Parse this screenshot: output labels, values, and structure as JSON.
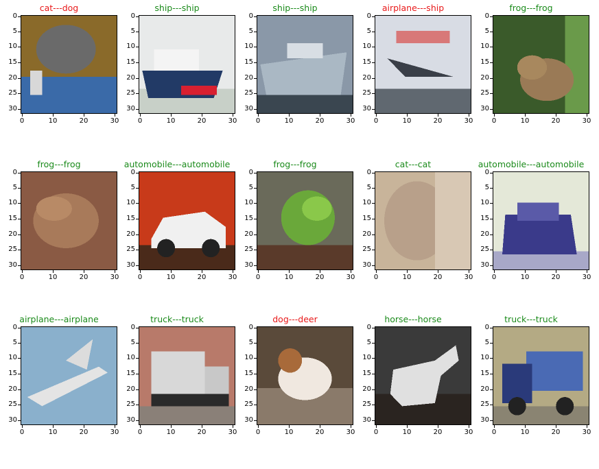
{
  "colors": {
    "correct": "#1a8a1a",
    "wrong": "#e8191a"
  },
  "axis": {
    "yticks": [
      "0",
      "5",
      "10",
      "15",
      "20",
      "25",
      "30"
    ],
    "xticks": [
      "0",
      "10",
      "20",
      "30"
    ]
  },
  "panels": [
    {
      "title": "cat---dog",
      "correct": false,
      "icon": "cat-image"
    },
    {
      "title": "ship---ship",
      "correct": true,
      "icon": "ship-image"
    },
    {
      "title": "ship---ship",
      "correct": true,
      "icon": "ship-image"
    },
    {
      "title": "airplane---ship",
      "correct": false,
      "icon": "airplane-image"
    },
    {
      "title": "frog---frog",
      "correct": true,
      "icon": "frog-image"
    },
    {
      "title": "frog---frog",
      "correct": true,
      "icon": "frog-image"
    },
    {
      "title": "automobile---automobile",
      "correct": true,
      "icon": "car-image"
    },
    {
      "title": "frog---frog",
      "correct": true,
      "icon": "frog-image"
    },
    {
      "title": "cat---cat",
      "correct": true,
      "icon": "cat-image"
    },
    {
      "title": "automobile---automobile",
      "correct": true,
      "icon": "car-image"
    },
    {
      "title": "airplane---airplane",
      "correct": true,
      "icon": "airplane-image"
    },
    {
      "title": "truck---truck",
      "correct": true,
      "icon": "truck-image"
    },
    {
      "title": "dog---deer",
      "correct": false,
      "icon": "dog-image"
    },
    {
      "title": "horse---horse",
      "correct": true,
      "icon": "horse-image"
    },
    {
      "title": "truck---truck",
      "correct": true,
      "icon": "truck-image"
    }
  ]
}
